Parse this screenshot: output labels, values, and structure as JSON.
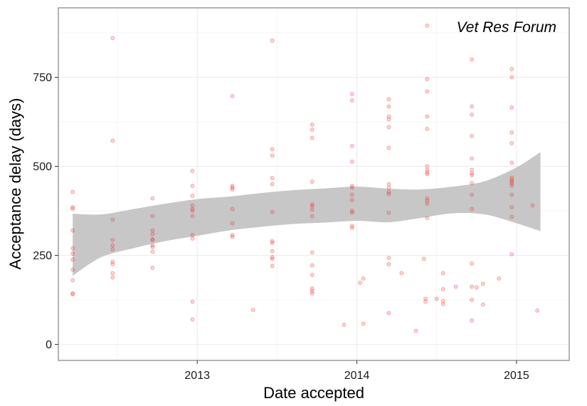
{
  "chart_data": {
    "type": "scatter",
    "title": "",
    "annotation": "Vet Res Forum",
    "xlabel": "Date accepted",
    "ylabel": "Acceptance delay (days)",
    "xlim": [
      2012.13,
      2015.33
    ],
    "ylim": [
      -45,
      945
    ],
    "x_ticks": [
      2013,
      2014,
      2015
    ],
    "x_tick_labels": [
      "2013",
      "2014",
      "2015"
    ],
    "y_ticks": [
      0,
      250,
      500,
      750
    ],
    "y_tick_labels": [
      "0",
      "250",
      "500",
      "750"
    ],
    "grid": true,
    "colors": {
      "points": "#e8302a",
      "ribbon": "#c7c7c7",
      "grid": "#ececec",
      "border": "#8c8c8c"
    },
    "smooth_band": {
      "x": [
        2012.22,
        2012.4,
        2012.6,
        2012.8,
        2013.0,
        2013.2,
        2013.4,
        2013.6,
        2013.8,
        2014.0,
        2014.2,
        2014.4,
        2014.6,
        2014.8,
        2015.0,
        2015.15
      ],
      "lower": [
        193,
        245,
        270,
        290,
        305,
        320,
        330,
        338,
        342,
        347,
        343,
        355,
        368,
        365,
        340,
        318
      ],
      "upper": [
        367,
        365,
        380,
        395,
        408,
        415,
        425,
        433,
        438,
        443,
        437,
        435,
        443,
        458,
        497,
        540
      ]
    },
    "points": [
      {
        "x": 2012.22,
        "y": 428
      },
      {
        "x": 2012.22,
        "y": 385
      },
      {
        "x": 2012.22,
        "y": 381
      },
      {
        "x": 2012.22,
        "y": 320
      },
      {
        "x": 2012.22,
        "y": 270
      },
      {
        "x": 2012.22,
        "y": 255
      },
      {
        "x": 2012.22,
        "y": 238
      },
      {
        "x": 2012.22,
        "y": 210
      },
      {
        "x": 2012.22,
        "y": 180
      },
      {
        "x": 2012.22,
        "y": 143
      },
      {
        "x": 2012.22,
        "y": 141
      },
      {
        "x": 2012.47,
        "y": 860
      },
      {
        "x": 2012.47,
        "y": 572
      },
      {
        "x": 2012.47,
        "y": 350
      },
      {
        "x": 2012.47,
        "y": 293
      },
      {
        "x": 2012.47,
        "y": 278
      },
      {
        "x": 2012.47,
        "y": 267
      },
      {
        "x": 2012.47,
        "y": 232
      },
      {
        "x": 2012.47,
        "y": 225
      },
      {
        "x": 2012.47,
        "y": 200
      },
      {
        "x": 2012.47,
        "y": 188
      },
      {
        "x": 2012.72,
        "y": 410
      },
      {
        "x": 2012.72,
        "y": 360
      },
      {
        "x": 2012.72,
        "y": 320
      },
      {
        "x": 2012.72,
        "y": 310
      },
      {
        "x": 2012.72,
        "y": 295
      },
      {
        "x": 2012.72,
        "y": 293
      },
      {
        "x": 2012.72,
        "y": 278
      },
      {
        "x": 2012.72,
        "y": 273
      },
      {
        "x": 2012.72,
        "y": 260
      },
      {
        "x": 2012.72,
        "y": 215
      },
      {
        "x": 2012.97,
        "y": 487
      },
      {
        "x": 2012.97,
        "y": 445
      },
      {
        "x": 2012.97,
        "y": 417
      },
      {
        "x": 2012.97,
        "y": 390
      },
      {
        "x": 2012.97,
        "y": 380
      },
      {
        "x": 2012.97,
        "y": 375
      },
      {
        "x": 2012.97,
        "y": 360
      },
      {
        "x": 2012.97,
        "y": 307
      },
      {
        "x": 2012.97,
        "y": 297
      },
      {
        "x": 2012.97,
        "y": 120
      },
      {
        "x": 2012.97,
        "y": 70
      },
      {
        "x": 2013.22,
        "y": 697
      },
      {
        "x": 2013.22,
        "y": 445
      },
      {
        "x": 2013.22,
        "y": 440
      },
      {
        "x": 2013.22,
        "y": 435
      },
      {
        "x": 2013.22,
        "y": 380
      },
      {
        "x": 2013.22,
        "y": 340
      },
      {
        "x": 2013.22,
        "y": 307
      },
      {
        "x": 2013.22,
        "y": 302
      },
      {
        "x": 2013.35,
        "y": 97
      },
      {
        "x": 2013.47,
        "y": 853
      },
      {
        "x": 2013.47,
        "y": 548
      },
      {
        "x": 2013.47,
        "y": 530
      },
      {
        "x": 2013.47,
        "y": 467
      },
      {
        "x": 2013.47,
        "y": 450
      },
      {
        "x": 2013.47,
        "y": 372
      },
      {
        "x": 2013.47,
        "y": 290
      },
      {
        "x": 2013.47,
        "y": 285
      },
      {
        "x": 2013.47,
        "y": 262
      },
      {
        "x": 2013.47,
        "y": 245
      },
      {
        "x": 2013.47,
        "y": 240
      },
      {
        "x": 2013.47,
        "y": 220
      },
      {
        "x": 2013.72,
        "y": 617
      },
      {
        "x": 2013.72,
        "y": 603
      },
      {
        "x": 2013.72,
        "y": 580
      },
      {
        "x": 2013.72,
        "y": 457
      },
      {
        "x": 2013.72,
        "y": 393
      },
      {
        "x": 2013.72,
        "y": 388
      },
      {
        "x": 2013.72,
        "y": 378
      },
      {
        "x": 2013.72,
        "y": 360
      },
      {
        "x": 2013.72,
        "y": 258
      },
      {
        "x": 2013.72,
        "y": 222
      },
      {
        "x": 2013.72,
        "y": 195
      },
      {
        "x": 2013.72,
        "y": 157
      },
      {
        "x": 2013.72,
        "y": 150
      },
      {
        "x": 2013.72,
        "y": 143
      },
      {
        "x": 2013.92,
        "y": 55
      },
      {
        "x": 2013.97,
        "y": 703
      },
      {
        "x": 2013.97,
        "y": 685
      },
      {
        "x": 2013.97,
        "y": 557
      },
      {
        "x": 2013.97,
        "y": 513
      },
      {
        "x": 2013.97,
        "y": 445
      },
      {
        "x": 2013.97,
        "y": 440
      },
      {
        "x": 2013.97,
        "y": 420
      },
      {
        "x": 2013.97,
        "y": 405
      },
      {
        "x": 2013.97,
        "y": 375
      },
      {
        "x": 2013.97,
        "y": 370
      },
      {
        "x": 2013.97,
        "y": 333
      },
      {
        "x": 2013.97,
        "y": 327
      },
      {
        "x": 2014.02,
        "y": 173
      },
      {
        "x": 2014.04,
        "y": 185
      },
      {
        "x": 2014.04,
        "y": 58
      },
      {
        "x": 2014.2,
        "y": 688
      },
      {
        "x": 2014.2,
        "y": 668
      },
      {
        "x": 2014.2,
        "y": 640
      },
      {
        "x": 2014.2,
        "y": 632
      },
      {
        "x": 2014.2,
        "y": 610
      },
      {
        "x": 2014.2,
        "y": 552
      },
      {
        "x": 2014.2,
        "y": 450
      },
      {
        "x": 2014.2,
        "y": 440
      },
      {
        "x": 2014.2,
        "y": 428
      },
      {
        "x": 2014.2,
        "y": 422
      },
      {
        "x": 2014.2,
        "y": 370
      },
      {
        "x": 2014.2,
        "y": 243
      },
      {
        "x": 2014.2,
        "y": 225
      },
      {
        "x": 2014.2,
        "y": 88
      },
      {
        "x": 2014.28,
        "y": 200
      },
      {
        "x": 2014.37,
        "y": 38
      },
      {
        "x": 2014.44,
        "y": 895
      },
      {
        "x": 2014.44,
        "y": 745
      },
      {
        "x": 2014.44,
        "y": 710
      },
      {
        "x": 2014.44,
        "y": 640
      },
      {
        "x": 2014.44,
        "y": 605
      },
      {
        "x": 2014.44,
        "y": 500
      },
      {
        "x": 2014.44,
        "y": 490
      },
      {
        "x": 2014.44,
        "y": 483
      },
      {
        "x": 2014.44,
        "y": 478
      },
      {
        "x": 2014.44,
        "y": 410
      },
      {
        "x": 2014.44,
        "y": 403
      },
      {
        "x": 2014.44,
        "y": 395
      },
      {
        "x": 2014.44,
        "y": 355
      },
      {
        "x": 2014.42,
        "y": 240
      },
      {
        "x": 2014.43,
        "y": 128
      },
      {
        "x": 2014.43,
        "y": 120
      },
      {
        "x": 2014.5,
        "y": 128
      },
      {
        "x": 2014.54,
        "y": 200
      },
      {
        "x": 2014.54,
        "y": 155
      },
      {
        "x": 2014.54,
        "y": 122
      },
      {
        "x": 2014.54,
        "y": 113
      },
      {
        "x": 2014.62,
        "y": 162
      },
      {
        "x": 2014.72,
        "y": 800
      },
      {
        "x": 2014.72,
        "y": 668
      },
      {
        "x": 2014.72,
        "y": 645
      },
      {
        "x": 2014.72,
        "y": 585
      },
      {
        "x": 2014.72,
        "y": 522
      },
      {
        "x": 2014.72,
        "y": 490
      },
      {
        "x": 2014.72,
        "y": 480
      },
      {
        "x": 2014.72,
        "y": 475
      },
      {
        "x": 2014.72,
        "y": 453
      },
      {
        "x": 2014.72,
        "y": 420
      },
      {
        "x": 2014.72,
        "y": 380
      },
      {
        "x": 2014.72,
        "y": 227
      },
      {
        "x": 2014.72,
        "y": 162
      },
      {
        "x": 2014.72,
        "y": 125
      },
      {
        "x": 2014.72,
        "y": 67
      },
      {
        "x": 2014.75,
        "y": 160
      },
      {
        "x": 2014.79,
        "y": 170
      },
      {
        "x": 2014.79,
        "y": 112
      },
      {
        "x": 2014.89,
        "y": 185
      },
      {
        "x": 2014.97,
        "y": 773
      },
      {
        "x": 2014.97,
        "y": 750
      },
      {
        "x": 2014.97,
        "y": 665
      },
      {
        "x": 2014.97,
        "y": 595
      },
      {
        "x": 2014.97,
        "y": 565
      },
      {
        "x": 2014.97,
        "y": 510
      },
      {
        "x": 2014.97,
        "y": 468
      },
      {
        "x": 2014.97,
        "y": 462
      },
      {
        "x": 2014.97,
        "y": 457
      },
      {
        "x": 2014.97,
        "y": 452
      },
      {
        "x": 2014.97,
        "y": 445
      },
      {
        "x": 2014.97,
        "y": 420
      },
      {
        "x": 2014.97,
        "y": 385
      },
      {
        "x": 2014.97,
        "y": 358
      },
      {
        "x": 2014.97,
        "y": 253
      },
      {
        "x": 2015.1,
        "y": 390
      },
      {
        "x": 2015.13,
        "y": 95
      }
    ]
  }
}
